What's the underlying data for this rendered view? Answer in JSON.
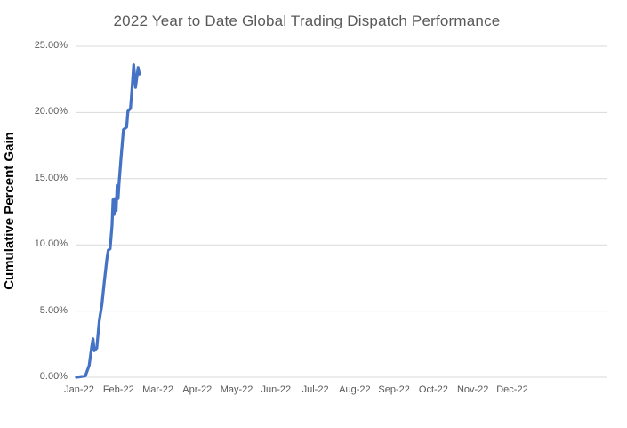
{
  "chart_data": {
    "type": "line",
    "title": "2022 Year to Date Global Trading Dispatch Performance",
    "ylabel": "Cumulative Percent Gain",
    "xlabel": "",
    "x_tick_labels": [
      "Jan-22",
      "Feb-22",
      "Mar-22",
      "Apr-22",
      "May-22",
      "Jun-22",
      "Jul-22",
      "Aug-22",
      "Sep-22",
      "Oct-22",
      "Nov-22",
      "Dec-22"
    ],
    "y_tick_labels": [
      "0.00%",
      "5.00%",
      "10.00%",
      "15.00%",
      "20.00%",
      "25.00%"
    ],
    "y_tick_values_pct": [
      0,
      5,
      10,
      15,
      20,
      25
    ],
    "ylim_pct": [
      0,
      25
    ],
    "x_range": "Jan-22 through Dec-22 (data plotted only Jan-01 to ~Feb-19)",
    "grid": "horizontal-gridlines-on",
    "legend": "none",
    "series": [
      {
        "x_days_since_jan1": [
          0,
          7,
          10,
          12,
          13,
          14,
          16,
          18,
          20,
          22,
          24,
          25,
          26.5,
          28,
          28.8,
          29.6,
          30.4,
          31.2,
          32,
          32.8,
          33.6,
          35,
          37,
          39.5,
          40.5,
          42.5,
          43.5,
          45,
          46.5,
          48.5,
          49.5
        ],
        "values_pct": [
          0.0,
          0.1,
          0.9,
          2.3,
          2.9,
          2.0,
          2.2,
          4.3,
          5.5,
          7.3,
          9.0,
          9.6,
          9.7,
          11.5,
          13.4,
          12.3,
          13.5,
          12.6,
          14.5,
          13.5,
          14.8,
          16.5,
          18.7,
          18.9,
          20.1,
          20.3,
          21.5,
          23.6,
          21.9,
          23.4,
          22.9
        ],
        "color": "#4472C4"
      }
    ],
    "colors": {
      "line": "#4472C4",
      "title_text": "#595959",
      "tick_text": "#595959",
      "axis_title_text": "#000000",
      "gridline": "#D9D9D9",
      "background": "#FFFFFF"
    }
  }
}
